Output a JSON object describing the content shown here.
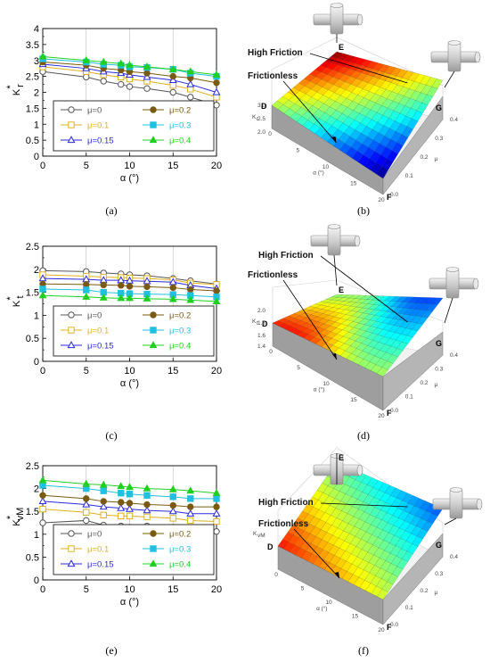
{
  "chart_data": [
    {
      "type": "line",
      "panel": "(a)",
      "xlabel": "α (°)",
      "ylabel": "K_r*",
      "ylabel_main": "K",
      "ylabel_sub": "r",
      "xlim": [
        0,
        20
      ],
      "ylim": [
        0,
        4
      ],
      "x_ticks": [
        "0",
        "5",
        "10",
        "15",
        "20"
      ],
      "y_ticks": [
        "0",
        "0.5",
        "1",
        "1.5",
        "2",
        "2.5",
        "3",
        "3.5",
        "4"
      ],
      "x": [
        0,
        5,
        7,
        9,
        10,
        12,
        15,
        17,
        20
      ],
      "series": [
        {
          "name": "μ=0",
          "values": [
            2.65,
            2.48,
            2.35,
            2.25,
            2.18,
            2.12,
            2.0,
            1.85,
            1.6
          ]
        },
        {
          "name": "μ=0.1",
          "values": [
            2.8,
            2.65,
            2.55,
            2.48,
            2.42,
            2.35,
            2.22,
            2.1,
            1.85
          ]
        },
        {
          "name": "μ=0.15",
          "values": [
            2.88,
            2.75,
            2.65,
            2.6,
            2.55,
            2.48,
            2.38,
            2.25,
            2.0
          ]
        },
        {
          "name": "μ=0.2",
          "values": [
            2.95,
            2.85,
            2.75,
            2.7,
            2.65,
            2.6,
            2.5,
            2.45,
            2.3
          ]
        },
        {
          "name": "μ=0.3",
          "values": [
            3.05,
            2.95,
            2.88,
            2.85,
            2.8,
            2.78,
            2.72,
            2.6,
            2.5
          ]
        },
        {
          "name": "μ=0.4",
          "values": [
            3.12,
            3.0,
            2.95,
            2.9,
            2.85,
            2.8,
            2.72,
            2.65,
            2.55
          ]
        }
      ],
      "legend": "lower-left"
    },
    {
      "type": "line",
      "panel": "(c)",
      "xlabel": "α (°)",
      "ylabel": "K_t*",
      "ylabel_main": "K",
      "ylabel_sub": "t",
      "xlim": [
        0,
        20
      ],
      "ylim": [
        0,
        2.5
      ],
      "x_ticks": [
        "0",
        "5",
        "10",
        "15",
        "20"
      ],
      "y_ticks": [
        "0",
        "0.5",
        "1",
        "1.5",
        "2",
        "2.5"
      ],
      "x": [
        0,
        5,
        7,
        9,
        10,
        12,
        15,
        17,
        20
      ],
      "series": [
        {
          "name": "μ=0",
          "values": [
            1.97,
            1.95,
            1.92,
            1.9,
            1.88,
            1.86,
            1.8,
            1.75,
            1.68
          ]
        },
        {
          "name": "μ=0.1",
          "values": [
            1.88,
            1.85,
            1.83,
            1.82,
            1.81,
            1.8,
            1.77,
            1.7,
            1.67
          ]
        },
        {
          "name": "μ=0.15",
          "values": [
            1.8,
            1.78,
            1.76,
            1.76,
            1.75,
            1.74,
            1.72,
            1.65,
            1.58
          ]
        },
        {
          "name": "μ=0.2",
          "values": [
            1.68,
            1.67,
            1.66,
            1.65,
            1.63,
            1.62,
            1.6,
            1.56,
            1.53
          ]
        },
        {
          "name": "μ=0.3",
          "values": [
            1.57,
            1.55,
            1.5,
            1.48,
            1.47,
            1.46,
            1.45,
            1.43,
            1.4
          ]
        },
        {
          "name": "μ=0.4",
          "values": [
            1.43,
            1.4,
            1.38,
            1.37,
            1.37,
            1.36,
            1.35,
            1.33,
            1.3
          ]
        }
      ],
      "legend": "lower-right"
    },
    {
      "type": "line",
      "panel": "(e)",
      "xlabel": "α (°)",
      "ylabel": "K_vM*",
      "ylabel_main": "K",
      "ylabel_sub": "vM",
      "xlim": [
        0,
        20
      ],
      "ylim": [
        0,
        2.5
      ],
      "x_ticks": [
        "0",
        "5",
        "10",
        "15",
        "20"
      ],
      "y_ticks": [
        "0",
        "0.5",
        "1",
        "1.5",
        "2",
        "2.5"
      ],
      "x": [
        0,
        5,
        7,
        9,
        10,
        12,
        15,
        17,
        20
      ],
      "series": [
        {
          "name": "μ=0",
          "values": [
            1.25,
            1.3,
            1.2,
            1.18,
            1.15,
            1.18,
            1.15,
            1.12,
            1.06
          ]
        },
        {
          "name": "μ=0.1",
          "values": [
            1.55,
            1.48,
            1.42,
            1.4,
            1.4,
            1.38,
            1.35,
            1.3,
            1.28
          ]
        },
        {
          "name": "μ=0.15",
          "values": [
            1.72,
            1.65,
            1.6,
            1.57,
            1.55,
            1.52,
            1.5,
            1.45,
            1.45
          ]
        },
        {
          "name": "μ=0.2",
          "values": [
            1.85,
            1.78,
            1.72,
            1.7,
            1.68,
            1.65,
            1.63,
            1.6,
            1.6
          ]
        },
        {
          "name": "μ=0.3",
          "values": [
            2.07,
            2.0,
            1.95,
            1.9,
            1.88,
            1.85,
            1.82,
            1.78,
            1.78
          ]
        },
        {
          "name": "μ=0.4",
          "values": [
            2.18,
            2.1,
            2.08,
            2.05,
            2.03,
            2.0,
            1.98,
            1.95,
            1.9
          ]
        }
      ],
      "legend": "lower-right"
    }
  ],
  "series_colors": [
    "#555555",
    "#e0b020",
    "#2a2ae0",
    "#7a5a10",
    "#20c0e0",
    "#20d020"
  ],
  "series_markers": [
    "circle-open",
    "square-open",
    "triangle-open",
    "circle-filled",
    "square-filled",
    "triangle-filled"
  ],
  "surfaces": [
    {
      "panel": "(b)",
      "labels": {
        "high": "High Friction",
        "frictionless": "Frictionless",
        "E": "E",
        "G": "G",
        "D": "D",
        "F": "F"
      },
      "zlabel": "K_r*",
      "zlabel_main": "K",
      "zlabel_sub": "r",
      "z_ticks": [
        "2.0",
        "2.5",
        "3.0"
      ],
      "alpha_label": "α (°)",
      "alpha_ticks": [
        "0",
        "5",
        "10",
        "15",
        "20"
      ],
      "mu_label": "μ",
      "mu_ticks": [
        "0.0",
        "0.1",
        "0.2",
        "0.3",
        "0.4"
      ]
    },
    {
      "panel": "(d)",
      "labels": {
        "high": "High Friction",
        "frictionless": "Frictionless",
        "E": "E",
        "G": "G",
        "D": "D",
        "F": "F"
      },
      "zlabel": "K_t*",
      "zlabel_main": "K",
      "zlabel_sub": "t",
      "z_ticks": [
        "1.4",
        "1.6",
        "1.8",
        "2.0"
      ],
      "alpha_label": "α (°)",
      "alpha_ticks": [
        "0",
        "5",
        "10",
        "15",
        "20"
      ],
      "mu_label": "μ",
      "mu_ticks": [
        "0.0",
        "0.1",
        "0.2",
        "0.3",
        "0.4"
      ]
    },
    {
      "panel": "(f)",
      "labels": {
        "high": "High Friction",
        "frictionless": "Frictionless",
        "E": "E",
        "G": "G",
        "D": "D",
        "F": "F"
      },
      "zlabel": "K_vM*",
      "zlabel_main": "K",
      "zlabel_sub": "vM",
      "z_ticks": [],
      "alpha_label": "α (°)",
      "alpha_ticks": [
        "0",
        "5",
        "10",
        "15",
        "20"
      ],
      "mu_label": "μ",
      "mu_ticks": [
        "0.0",
        "0.1",
        "0.2",
        "0.3",
        "0.4"
      ]
    }
  ]
}
